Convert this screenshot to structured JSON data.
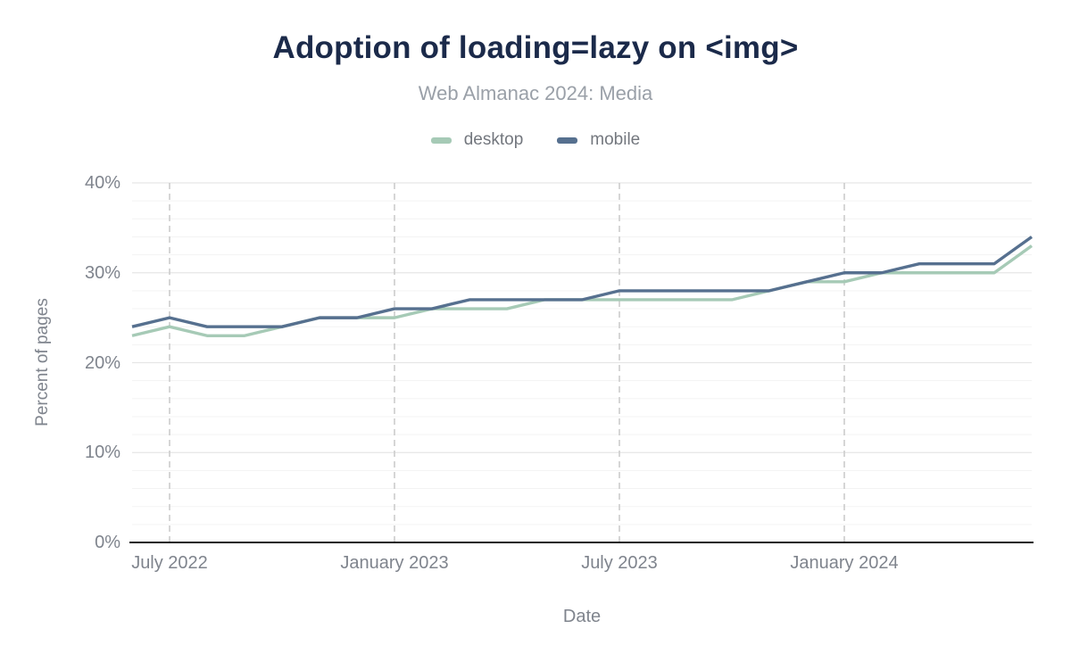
{
  "header": {
    "title": "Adoption of loading=lazy on <img>",
    "subtitle": "Web Almanac 2024: Media"
  },
  "legend": {
    "items": [
      {
        "label": "desktop",
        "color": "#a6cab6"
      },
      {
        "label": "mobile",
        "color": "#56708f"
      }
    ]
  },
  "chart_data": {
    "type": "line",
    "title": "Adoption of loading=lazy on <img>",
    "subtitle": "Web Almanac 2024: Media",
    "xlabel": "Date",
    "ylabel": "Percent of pages",
    "ylim": [
      0,
      40
    ],
    "y_unit": "%",
    "grid": {
      "horizontal_minor_step": 2,
      "horizontal_major_step": 10,
      "vertical_dashed_at_labeled_ticks": true
    },
    "legend_position": "top",
    "x": [
      "2022-06",
      "2022-07",
      "2022-08",
      "2022-09",
      "2022-10",
      "2022-11",
      "2022-12",
      "2023-01",
      "2023-02",
      "2023-03",
      "2023-04",
      "2023-05",
      "2023-06",
      "2023-07",
      "2023-08",
      "2023-09",
      "2023-10",
      "2023-11",
      "2023-12",
      "2024-01",
      "2024-02",
      "2024-03",
      "2024-04",
      "2024-05",
      "2024-06"
    ],
    "x_tick_labels": [
      {
        "label": "July 2022",
        "index": 1
      },
      {
        "label": "January 2023",
        "index": 7
      },
      {
        "label": "July 2023",
        "index": 13
      },
      {
        "label": "January 2024",
        "index": 19
      }
    ],
    "y_tick_labels": [
      {
        "label": "0%",
        "value": 0
      },
      {
        "label": "10%",
        "value": 10
      },
      {
        "label": "20%",
        "value": 20
      },
      {
        "label": "30%",
        "value": 30
      },
      {
        "label": "40%",
        "value": 40
      }
    ],
    "series": [
      {
        "name": "desktop",
        "color": "#a6cab6",
        "values": [
          23,
          24,
          23,
          23,
          24,
          25,
          25,
          25,
          26,
          26,
          26,
          27,
          27,
          27,
          27,
          27,
          27,
          28,
          29,
          29,
          30,
          30,
          30,
          30,
          33
        ]
      },
      {
        "name": "mobile",
        "color": "#56708f",
        "values": [
          24,
          25,
          24,
          24,
          24,
          25,
          25,
          26,
          26,
          27,
          27,
          27,
          27,
          28,
          28,
          28,
          28,
          28,
          29,
          30,
          30,
          31,
          31,
          31,
          34
        ]
      }
    ]
  }
}
